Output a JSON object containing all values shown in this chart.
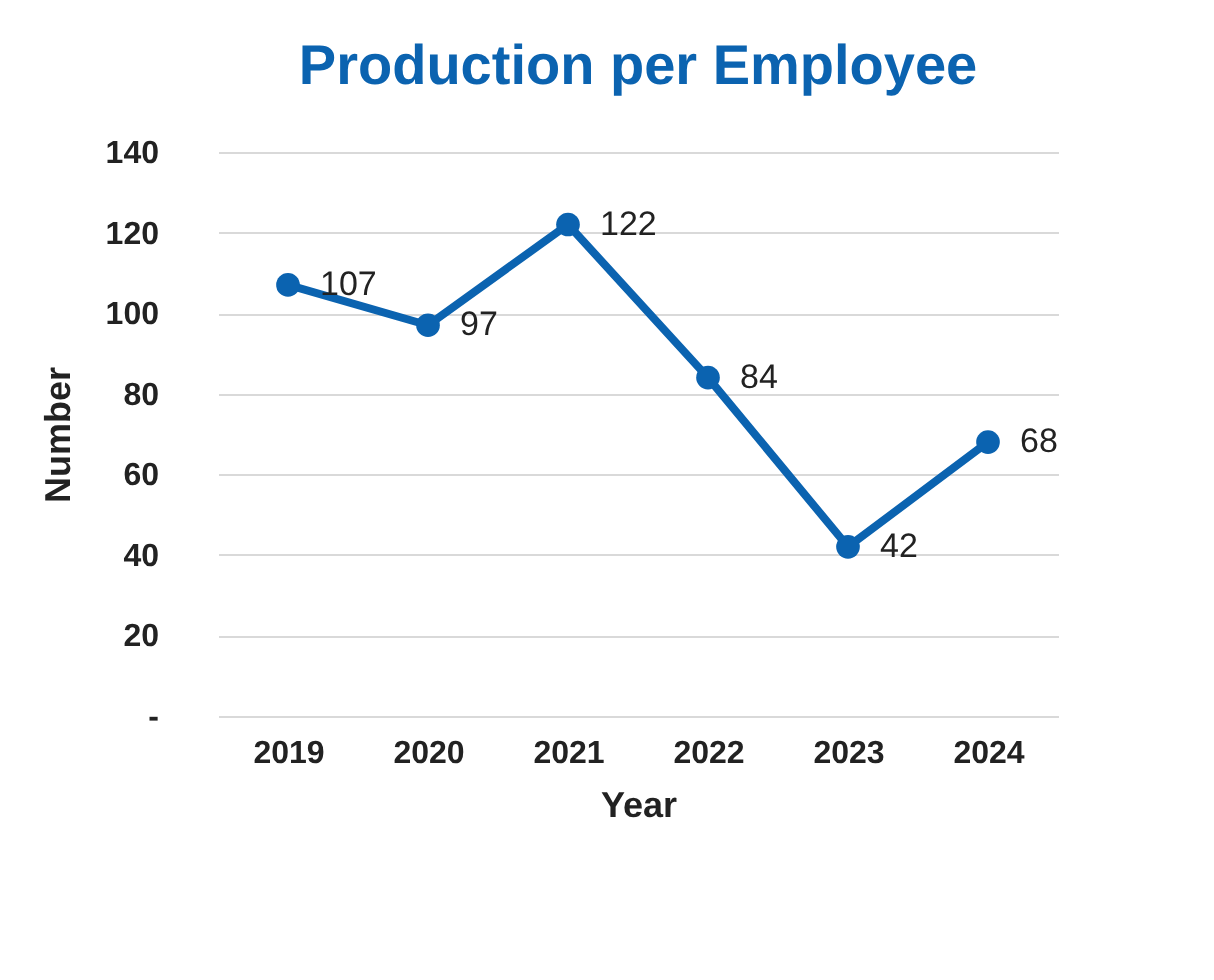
{
  "chart_data": {
    "type": "line",
    "title": "Production per Employee",
    "xlabel": "Year",
    "ylabel": "Number",
    "categories": [
      "2019",
      "2020",
      "2021",
      "2022",
      "2023",
      "2024"
    ],
    "series": [
      {
        "color": "#0b63b0",
        "values": [
          107,
          97,
          122,
          84,
          42,
          68
        ]
      }
    ],
    "ylim": [
      0,
      140
    ],
    "yticks": [
      {
        "value": 0,
        "label": "-"
      },
      20,
      40,
      60,
      80,
      100,
      120,
      140
    ],
    "grid": "y",
    "marker": "circle",
    "line_style": "solid",
    "data_labels": true
  }
}
